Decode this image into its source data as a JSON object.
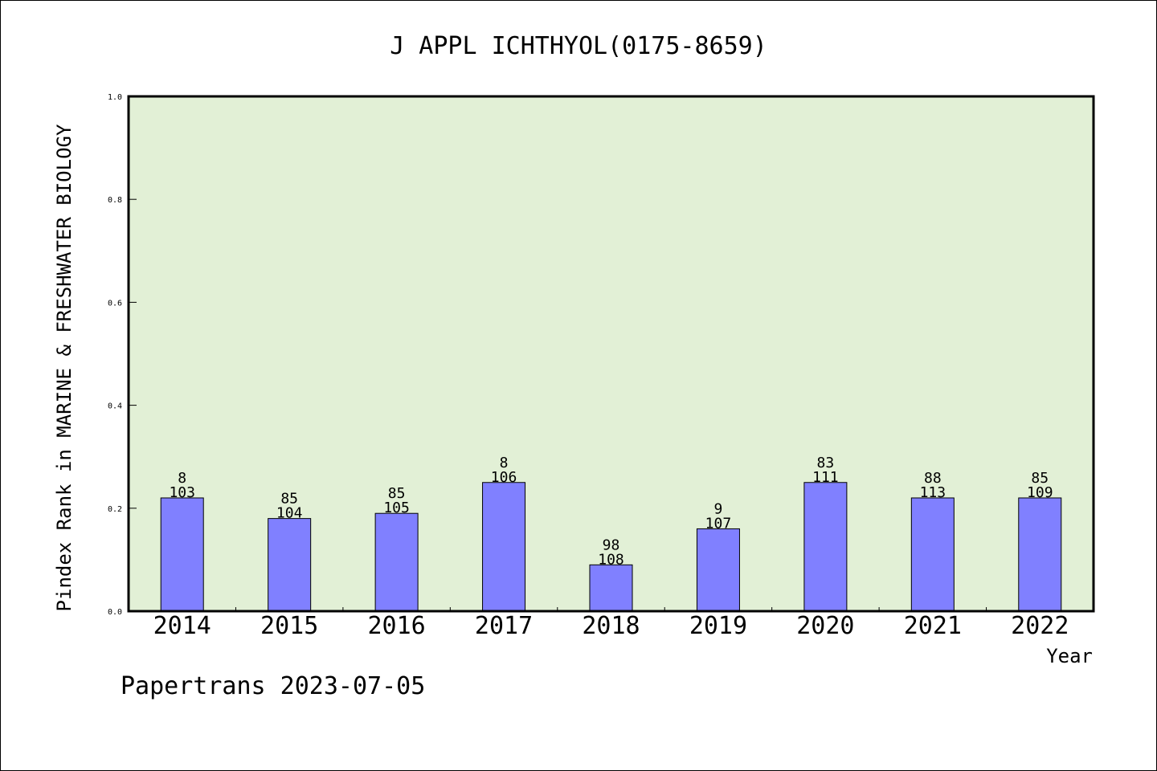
{
  "chart_data": {
    "type": "bar",
    "title": "J APPL ICHTHYOL(0175-8659)",
    "xlabel": "Year",
    "ylabel": "Pindex Rank in MARINE & FRESHWATER BIOLOGY",
    "ylim": [
      0,
      1.0
    ],
    "yticks": [
      "0.0",
      "0.2",
      "0.4",
      "0.6",
      "0.8",
      "1.0"
    ],
    "categories": [
      "2014",
      "2015",
      "2016",
      "2017",
      "2018",
      "2019",
      "2020",
      "2021",
      "2022"
    ],
    "values": [
      0.22,
      0.18,
      0.19,
      0.25,
      0.09,
      0.16,
      0.25,
      0.22,
      0.22
    ],
    "rank_labels": [
      "8",
      "85",
      "85",
      "8",
      "98",
      "9",
      "83",
      "88",
      "85"
    ],
    "total_labels": [
      "103",
      "104",
      "105",
      "106",
      "108",
      "107",
      "111",
      "113",
      "109"
    ],
    "grid": false,
    "legend": "none",
    "colors": {
      "bar": "#8080ff",
      "plot_bg": "#e2f0d6",
      "axis": "#000000"
    }
  },
  "footer": "Papertrans 2023-07-05"
}
